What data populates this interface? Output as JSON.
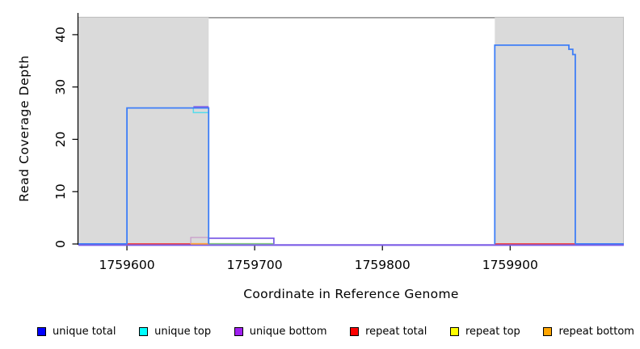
{
  "chart_data": {
    "type": "line",
    "title": "",
    "xlabel": "Coordinate in Reference Genome",
    "ylabel": "Read Coverage Depth",
    "xlim": [
      1759562,
      1759989
    ],
    "ylim": [
      0,
      44
    ],
    "xticks": [
      1759600,
      1759700,
      1759800,
      1759900
    ],
    "yticks": [
      0,
      10,
      20,
      30,
      40
    ],
    "grid": false,
    "legend_position": "bottom",
    "series": [
      {
        "name": "unique total",
        "steps": [
          [
            1759600,
            26
          ],
          [
            1759664,
            0
          ],
          [
            1759888,
            38
          ],
          [
            1759946,
            37
          ],
          [
            1759949,
            36
          ],
          [
            1759951,
            0
          ]
        ]
      },
      {
        "name": "unique top",
        "steps": [
          [
            1759600,
            26
          ],
          [
            1759652,
            25
          ],
          [
            1759664,
            0
          ]
        ]
      },
      {
        "name": "unique bottom",
        "steps": [
          [
            1759600,
            26
          ],
          [
            1759664,
            1
          ],
          [
            1759715,
            0
          ]
        ]
      },
      {
        "name": "repeat total",
        "steps": [
          [
            1759650,
            1
          ],
          [
            1759664,
            0
          ]
        ]
      },
      {
        "name": "repeat top",
        "steps": [
          [
            1759650,
            1
          ],
          [
            1759664,
            0
          ]
        ]
      },
      {
        "name": "repeat bottom",
        "steps": [
          [
            1759650,
            1
          ],
          [
            1759664,
            0
          ]
        ]
      }
    ],
    "shaded_bands": [
      {
        "x0": 1759562,
        "x1": 1759664
      },
      {
        "x0": 1759888,
        "x1": 1759989,
        "right_edge": true
      }
    ],
    "band_top_depth": 43.4,
    "mid_top_border": {
      "x0": 1759664,
      "x1": 1759888,
      "depth": 43.25,
      "color": "#8A8A8A"
    },
    "colors": {
      "band_fill": "#DADADA",
      "band_edge": "#BDBDBD",
      "axis": "#000000"
    },
    "draw_colors": {
      "uniqueTotalLine": "#3E7EF7",
      "uniqueTopLine": "#55DCEC",
      "uniqueBottomLine": "#7B5CE6",
      "repeatTotalLine": "#EE4A4A",
      "repeatBottomLine": "#FFA23E",
      "blendGreenLine": "#7FC87F",
      "plumOutline": "#C9A0CB"
    },
    "strokes": [
      {
        "name": "unique-bottom-baseline",
        "color": "uniqueBottomLine",
        "w": 2.2,
        "dy": 1.3,
        "pts": [
          [
            1759562,
            0
          ],
          [
            1759989,
            0
          ]
        ]
      },
      {
        "name": "unique-total-zero-left",
        "color": "uniqueTotalLine",
        "w": 1.5,
        "dy": -0.2,
        "pts": [
          [
            1759562,
            0
          ],
          [
            1759600,
            0
          ]
        ]
      },
      {
        "name": "repeat-total-zero-left",
        "color": "repeatTotalLine",
        "w": 1.5,
        "dy": -0.2,
        "pts": [
          [
            1759600,
            0
          ],
          [
            1759650,
            0
          ]
        ]
      },
      {
        "name": "repeat-coverage-box",
        "color": "plumOutline",
        "w": 1.4,
        "dy": 0,
        "pts": [
          [
            1759650,
            0
          ],
          [
            1759650,
            1.25
          ],
          [
            1759664,
            1.25
          ],
          [
            1759664,
            0
          ]
        ]
      },
      {
        "name": "repeat-bottom-zero",
        "color": "repeatBottomLine",
        "w": 1.8,
        "dy": -0.2,
        "pts": [
          [
            1759650,
            0
          ],
          [
            1759664,
            0
          ]
        ]
      },
      {
        "name": "blended-zero-segment",
        "color": "blendGreenLine",
        "w": 1.5,
        "dy": -0.4,
        "pts": [
          [
            1759664,
            0
          ],
          [
            1759715,
            0
          ]
        ]
      },
      {
        "name": "repeat-total-zero-right",
        "color": "repeatTotalLine",
        "w": 1.5,
        "dy": -0.2,
        "pts": [
          [
            1759888,
            0
          ],
          [
            1759951,
            0
          ]
        ]
      },
      {
        "name": "unique-total-zero-right",
        "color": "uniqueTotalLine",
        "w": 1.5,
        "dy": -0.2,
        "pts": [
          [
            1759951,
            0
          ],
          [
            1759989,
            0
          ]
        ]
      },
      {
        "name": "unique-bottom-step",
        "color": "uniqueBottomLine",
        "w": 1.7,
        "dy": 0,
        "pts": [
          [
            1759664,
            0
          ],
          [
            1759664,
            1.1
          ],
          [
            1759715,
            1.1
          ],
          [
            1759715,
            0
          ]
        ]
      },
      {
        "name": "unique-top-step",
        "color": "uniqueTopLine",
        "w": 1.5,
        "dy": 0,
        "pts": [
          [
            1759652,
            26
          ],
          [
            1759652,
            25.1
          ],
          [
            1759663.5,
            25.1
          ]
        ]
      },
      {
        "name": "unique-total-left-box",
        "color": "uniqueTotalLine",
        "w": 1.8,
        "dy": 0,
        "pts": [
          [
            1759600,
            0
          ],
          [
            1759600,
            26
          ],
          [
            1759664,
            26
          ],
          [
            1759664,
            0
          ]
        ]
      },
      {
        "name": "unique-bottom-top-segment",
        "color": "uniqueBottomLine",
        "w": 1.7,
        "dy": -1.4,
        "pts": [
          [
            1759652,
            26
          ],
          [
            1759664,
            26
          ]
        ]
      },
      {
        "name": "unique-total-right-box",
        "color": "uniqueTotalLine",
        "w": 1.8,
        "dy": 0,
        "pts": [
          [
            1759888,
            0
          ],
          [
            1759888,
            38
          ],
          [
            1759946,
            38
          ],
          [
            1759946,
            37.2
          ],
          [
            1759949,
            37.2
          ],
          [
            1759949,
            36.2
          ],
          [
            1759951,
            36.2
          ],
          [
            1759951,
            0
          ]
        ]
      }
    ],
    "legend": {
      "items": [
        {
          "label": "unique total",
          "color": "#0000FF"
        },
        {
          "label": "unique top",
          "color": "#00FFFF"
        },
        {
          "label": "unique bottom",
          "color": "#A020F0"
        },
        {
          "label": "repeat total",
          "color": "#FF0000"
        },
        {
          "label": "repeat top",
          "color": "#FFFF00"
        },
        {
          "label": "repeat bottom",
          "color": "#FFA500"
        }
      ]
    }
  }
}
